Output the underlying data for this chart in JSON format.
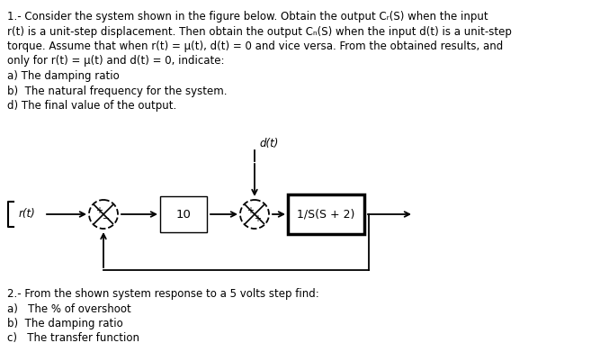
{
  "background_color": "#ffffff",
  "paragraph1_line1": "1.- Consider the system shown in the figure below. Obtain the output Cᵣ(S) when the input",
  "paragraph1_line2": "r(t) is a unit-step displacement. Then obtain the output Cₙ(S) when the input d(t) is a unit-step",
  "paragraph1_line3": "torque. Assume that when r(t) = μ(t), d(t) = 0 and vice versa. From the obtained results, and",
  "paragraph1_line4": "only for r(t) = μ(t) and d(t) = 0, indicate:",
  "paragraph1_line5": "a) The damping ratio",
  "paragraph1_line6": "b)  The natural frequency for the system.",
  "paragraph1_line7": "d) The final value of the output.",
  "block_label": "10",
  "tf_label": "1/S(S + 2)",
  "dt_label": "d(t)",
  "rt_label": "r(t)",
  "paragraph2_line1": "2.- From the shown system response to a 5 volts step find:",
  "paragraph2_line2": "a)   The % of overshoot",
  "paragraph2_line3": "b)  The damping ratio",
  "paragraph2_line4": "c)   The transfer function",
  "text_color": "#000000",
  "font_size": 8.5,
  "fig_width": 6.57,
  "fig_height": 4.01,
  "dpi": 100
}
